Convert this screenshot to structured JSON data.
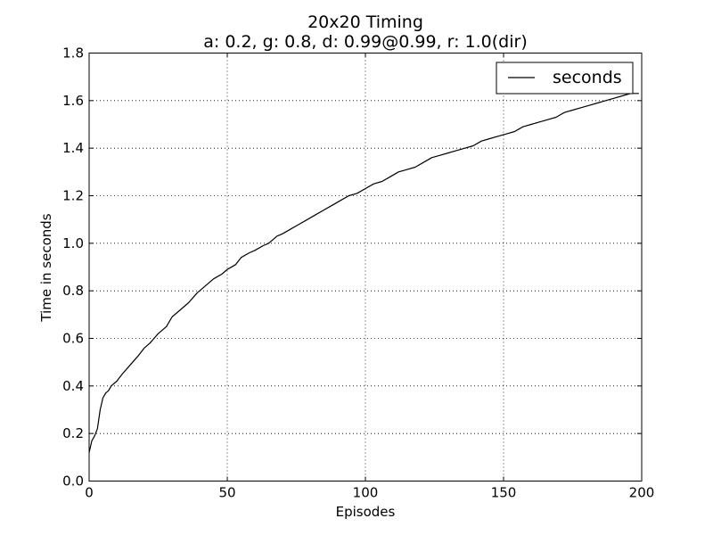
{
  "chart_data": {
    "type": "line",
    "title": "20x20 Timing",
    "subtitle": "a: 0.2, g: 0.8, d: 0.99@0.99, r: 1.0(dir)",
    "xlabel": "Episodes",
    "ylabel": "Time in seconds",
    "xlim": [
      0,
      200
    ],
    "ylim": [
      0,
      1.8
    ],
    "xticks": [
      "0",
      "50",
      "100",
      "150",
      "200"
    ],
    "yticks": [
      "0.0",
      "0.2",
      "0.4",
      "0.6",
      "0.8",
      "1.0",
      "1.2",
      "1.4",
      "1.6",
      "1.8"
    ],
    "grid": true,
    "legend_position": "top-right",
    "series": [
      {
        "name": "seconds",
        "color": "#000000",
        "points": [
          [
            0,
            0.12
          ],
          [
            1,
            0.17
          ],
          [
            2,
            0.19
          ],
          [
            3,
            0.22
          ],
          [
            4,
            0.3
          ],
          [
            5,
            0.35
          ],
          [
            6,
            0.37
          ],
          [
            7,
            0.38
          ],
          [
            8,
            0.4
          ],
          [
            10,
            0.42
          ],
          [
            12,
            0.45
          ],
          [
            15,
            0.49
          ],
          [
            18,
            0.53
          ],
          [
            20,
            0.56
          ],
          [
            22,
            0.58
          ],
          [
            25,
            0.62
          ],
          [
            28,
            0.65
          ],
          [
            30,
            0.69
          ],
          [
            33,
            0.72
          ],
          [
            36,
            0.75
          ],
          [
            39,
            0.79
          ],
          [
            42,
            0.82
          ],
          [
            45,
            0.85
          ],
          [
            48,
            0.87
          ],
          [
            50,
            0.89
          ],
          [
            53,
            0.91
          ],
          [
            55,
            0.94
          ],
          [
            58,
            0.96
          ],
          [
            60,
            0.97
          ],
          [
            63,
            0.99
          ],
          [
            65,
            1.0
          ],
          [
            68,
            1.03
          ],
          [
            70,
            1.04
          ],
          [
            73,
            1.06
          ],
          [
            76,
            1.08
          ],
          [
            79,
            1.1
          ],
          [
            82,
            1.12
          ],
          [
            85,
            1.14
          ],
          [
            88,
            1.16
          ],
          [
            91,
            1.18
          ],
          [
            94,
            1.2
          ],
          [
            97,
            1.21
          ],
          [
            100,
            1.23
          ],
          [
            103,
            1.25
          ],
          [
            106,
            1.26
          ],
          [
            109,
            1.28
          ],
          [
            112,
            1.3
          ],
          [
            115,
            1.31
          ],
          [
            118,
            1.32
          ],
          [
            121,
            1.34
          ],
          [
            124,
            1.36
          ],
          [
            127,
            1.37
          ],
          [
            130,
            1.38
          ],
          [
            133,
            1.39
          ],
          [
            136,
            1.4
          ],
          [
            139,
            1.41
          ],
          [
            142,
            1.43
          ],
          [
            145,
            1.44
          ],
          [
            148,
            1.45
          ],
          [
            151,
            1.46
          ],
          [
            154,
            1.47
          ],
          [
            157,
            1.49
          ],
          [
            160,
            1.5
          ],
          [
            163,
            1.51
          ],
          [
            166,
            1.52
          ],
          [
            169,
            1.53
          ],
          [
            172,
            1.55
          ],
          [
            175,
            1.56
          ],
          [
            178,
            1.57
          ],
          [
            181,
            1.58
          ],
          [
            184,
            1.59
          ],
          [
            187,
            1.6
          ],
          [
            190,
            1.61
          ],
          [
            193,
            1.62
          ],
          [
            196,
            1.63
          ],
          [
            199,
            1.63
          ]
        ]
      }
    ]
  }
}
